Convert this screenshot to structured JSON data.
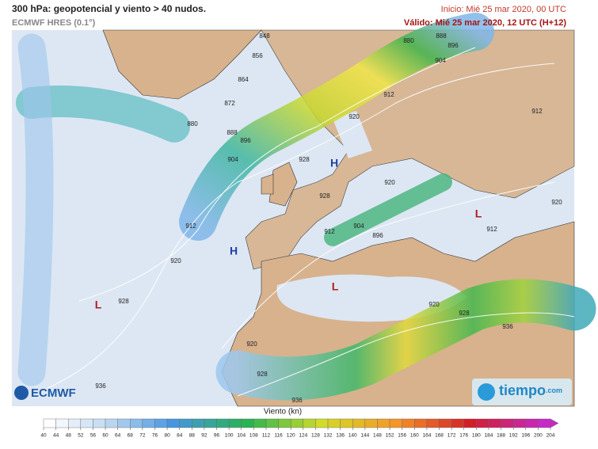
{
  "header": {
    "title": "300 hPa: geopotencial y viento > 40 nudos.",
    "model": "ECMWF HRES (0.1°)",
    "init": "Inicio: Mié 25 mar 2020, 00 UTC",
    "valid": "Válido: Mié 25 mar 2020, 12 UTC (H+12)"
  },
  "map": {
    "contour_labels": [
      848,
      856,
      864,
      872,
      880,
      888,
      896,
      904,
      912,
      920,
      928,
      936,
      928,
      928,
      912,
      904,
      896,
      920,
      920,
      912,
      904,
      896,
      888,
      880,
      912,
      920,
      912,
      920,
      928,
      936,
      920,
      928,
      936
    ],
    "pressure_centers": [
      "H",
      "L",
      "L",
      "L",
      "H"
    ]
  },
  "logos": {
    "left": "ECMWF",
    "right": "tiempo",
    "right_suffix": ".com"
  },
  "colorbar": {
    "title": "Viento (kn)",
    "ticks": [
      40,
      44,
      48,
      52,
      56,
      60,
      64,
      68,
      72,
      76,
      80,
      84,
      88,
      92,
      96,
      100,
      104,
      108,
      112,
      116,
      120,
      124,
      128,
      132,
      136,
      140,
      144,
      148,
      152,
      156,
      160,
      164,
      168,
      172,
      176,
      180,
      184,
      188,
      192,
      196,
      200,
      204
    ]
  }
}
